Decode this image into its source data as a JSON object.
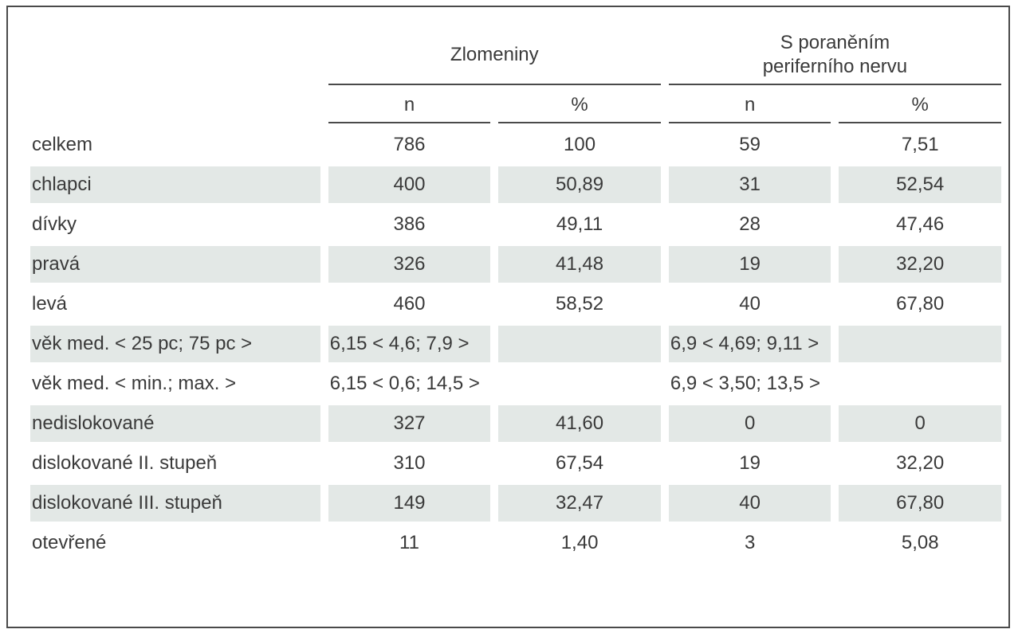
{
  "header": {
    "group1": "Zlomeniny",
    "group2_line1": "S poraněním",
    "group2_line2": "periferního nervu",
    "sub": [
      "n",
      "%",
      "n",
      "%"
    ]
  },
  "rows": [
    {
      "label": "celkem",
      "c1": "786",
      "c2": "100",
      "c3": "59",
      "c4": "7,51",
      "shaded": false
    },
    {
      "label": "chlapci",
      "c1": "400",
      "c2": "50,89",
      "c3": "31",
      "c4": "52,54",
      "shaded": true
    },
    {
      "label": "dívky",
      "c1": "386",
      "c2": "49,11",
      "c3": "28",
      "c4": "47,46",
      "shaded": false
    },
    {
      "label": "pravá",
      "c1": "326",
      "c2": "41,48",
      "c3": "19",
      "c4": "32,20",
      "shaded": true
    },
    {
      "label": "levá",
      "c1": "460",
      "c2": "58,52",
      "c3": "40",
      "c4": "67,80",
      "shaded": false
    },
    {
      "label": "věk med. < 25 pc; 75 pc >",
      "c1": "6,15 < 4,6; 7,9 >",
      "c2": "",
      "c3": "6,9 < 4,69; 9,11 >",
      "c4": "",
      "shaded": true
    },
    {
      "label": "věk med. < min.; max. >",
      "c1": "6,15 < 0,6; 14,5 >",
      "c2": "",
      "c3": "6,9 < 3,50; 13,5 >",
      "c4": "",
      "shaded": false
    },
    {
      "label": "nedislokované",
      "c1": "327",
      "c2": "41,60",
      "c3": "0",
      "c4": "0",
      "shaded": true
    },
    {
      "label": "dislokované II. stupeň",
      "c1": "310",
      "c2": "67,54",
      "c3": "19",
      "c4": "32,20",
      "shaded": false
    },
    {
      "label": "dislokované III. stupeň",
      "c1": "149",
      "c2": "32,47",
      "c3": "40",
      "c4": "67,80",
      "shaded": true
    },
    {
      "label": "otevřené",
      "c1": "11",
      "c2": "1,40",
      "c3": "3",
      "c4": "5,08",
      "shaded": false
    }
  ],
  "colors": {
    "shade": "#e3e8e6",
    "border": "#4a4a4a",
    "text": "#3a3a3a"
  }
}
